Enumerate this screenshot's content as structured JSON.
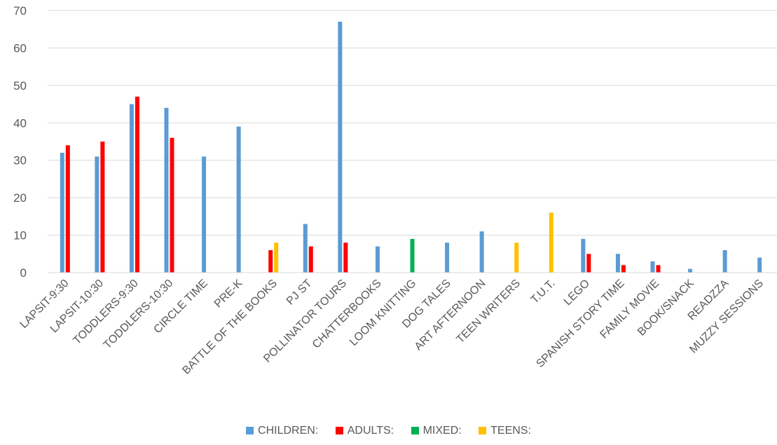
{
  "chart_data": {
    "type": "bar",
    "categories": [
      "LAPSIT-9:30",
      "LAPSIT-10:30",
      "TODDLERS-9:30",
      "TODDLERS-10:30",
      "CIRCLE TIME",
      "PRE-K",
      "BATTLE OF THE BOOKS",
      "PJ ST",
      "POLLINATOR TOURS",
      "CHATTERBOOKS",
      "LOOM KNITTING",
      "DOG TALES",
      "ART AFTERNOON",
      "TEEN WRITERS",
      "T.U.T.",
      "LEGO",
      "SPANISH STORY TIME",
      "FAMILY MOVIE",
      "BOOK/SNACK",
      "READZZA",
      "MUZZY SESSIONS"
    ],
    "series": [
      {
        "name": "CHILDREN:",
        "color": "#5b9bd5",
        "values": [
          32,
          31,
          45,
          44,
          31,
          39,
          null,
          13,
          67,
          7,
          null,
          8,
          11,
          null,
          null,
          9,
          5,
          3,
          1,
          6,
          4
        ]
      },
      {
        "name": "ADULTS:",
        "color": "#ff0000",
        "values": [
          34,
          35,
          47,
          36,
          null,
          null,
          6,
          7,
          8,
          null,
          null,
          null,
          null,
          null,
          null,
          5,
          2,
          2,
          null,
          null,
          null
        ]
      },
      {
        "name": "MIXED:",
        "color": "#00b050",
        "values": [
          null,
          null,
          null,
          null,
          null,
          null,
          null,
          null,
          null,
          null,
          9,
          null,
          null,
          null,
          null,
          null,
          null,
          null,
          null,
          null,
          null
        ]
      },
      {
        "name": "TEENS:",
        "color": "#ffc000",
        "values": [
          null,
          null,
          null,
          null,
          null,
          null,
          8,
          null,
          null,
          null,
          null,
          null,
          null,
          8,
          16,
          null,
          null,
          null,
          null,
          null,
          null
        ]
      }
    ],
    "ylim": [
      0,
      70
    ],
    "yticks": [
      "0",
      "10",
      "20",
      "30",
      "40",
      "50",
      "60",
      "70"
    ],
    "grid": true,
    "legend_position": "bottom"
  }
}
